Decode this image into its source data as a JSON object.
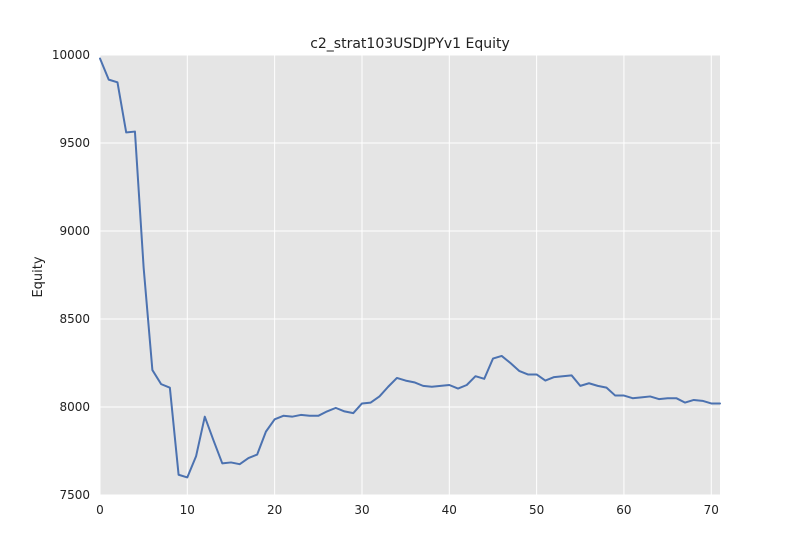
{
  "chart_data": {
    "type": "line",
    "title": "c2_strat103USDJPYv1 Equity",
    "xlabel": "",
    "ylabel": "Equity",
    "xlim": [
      0,
      71
    ],
    "ylim": [
      7500,
      10000
    ],
    "xticks": [
      0,
      10,
      20,
      30,
      40,
      50,
      60,
      70
    ],
    "yticks": [
      7500,
      8000,
      8500,
      9000,
      9500,
      10000
    ],
    "grid": true,
    "legend": "none",
    "background_color": "#e5e5e5",
    "grid_color": "#ffffff",
    "series": [
      {
        "color": "#4c72b0",
        "x": [
          0,
          1,
          2,
          3,
          4,
          5,
          6,
          7,
          8,
          9,
          10,
          11,
          12,
          13,
          14,
          15,
          16,
          17,
          18,
          19,
          20,
          21,
          22,
          23,
          24,
          25,
          26,
          27,
          28,
          29,
          30,
          31,
          32,
          33,
          34,
          35,
          36,
          37,
          38,
          39,
          40,
          41,
          42,
          43,
          44,
          45,
          46,
          47,
          48,
          49,
          50,
          51,
          52,
          53,
          54,
          55,
          56,
          57,
          58,
          59,
          60,
          61,
          62,
          63,
          64,
          65,
          66,
          67,
          68,
          69,
          70,
          71
        ],
        "values": [
          9980,
          9860,
          9845,
          9560,
          9565,
          8790,
          8210,
          8130,
          8110,
          7615,
          7600,
          7720,
          7945,
          7810,
          7680,
          7685,
          7675,
          7710,
          7730,
          7860,
          7930,
          7950,
          7945,
          7955,
          7950,
          7950,
          7975,
          7995,
          7975,
          7965,
          8020,
          8025,
          8060,
          8115,
          8165,
          8150,
          8140,
          8120,
          8115,
          8120,
          8125,
          8105,
          8125,
          8175,
          8160,
          8275,
          8290,
          8250,
          8205,
          8185,
          8185,
          8150,
          8170,
          8175,
          8180,
          8120,
          8135,
          8120,
          8110,
          8065,
          8065,
          8050,
          8055,
          8060,
          8045,
          8050,
          8050,
          8025,
          8040,
          8035,
          8020,
          8020
        ]
      }
    ]
  }
}
